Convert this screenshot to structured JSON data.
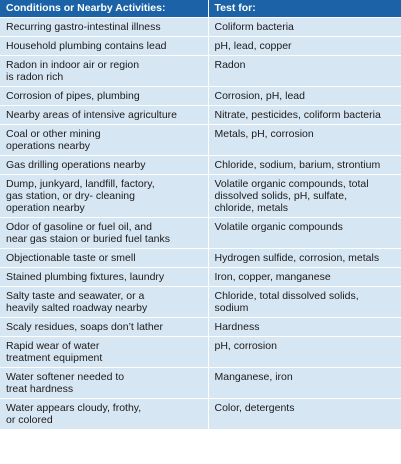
{
  "table": {
    "headers": [
      "Conditions or Nearby Activities:",
      "Test for:"
    ],
    "rows": [
      [
        "Recurring gastro-intestinal illness",
        "Coliform bacteria"
      ],
      [
        "Household plumbing contains lead",
        "pH, lead, copper"
      ],
      [
        "Radon in indoor air or region\nis radon rich",
        "Radon"
      ],
      [
        "Corrosion of pipes, plumbing",
        "Corrosion, pH, lead"
      ],
      [
        "Nearby areas of intensive agriculture",
        "Nitrate, pesticides, coliform bacteria"
      ],
      [
        "Coal or other mining\noperations nearby",
        "Metals, pH, corrosion"
      ],
      [
        "Gas drilling operations nearby",
        "Chloride, sodium, barium, strontium"
      ],
      [
        "Dump, junkyard, landfill, factory,\ngas station, or dry- cleaning\noperation nearby",
        "Volatile organic compounds, total\ndissolved solids, pH, sulfate,\nchloride, metals"
      ],
      [
        "Odor of gasoline or fuel oil, and\nnear gas staion or buried fuel tanks",
        "Volatile organic compounds"
      ],
      [
        "Objectionable taste or smell",
        "Hydrogen sulfide, corrosion, metals"
      ],
      [
        "Stained plumbing fixtures, laundry",
        "Iron, copper, manganese"
      ],
      [
        "Salty taste and seawater, or a\nheavily salted roadway nearby",
        "Chloride, total dissolved solids,\nsodium"
      ],
      [
        "Scaly residues, soaps don’t lather",
        "Hardness"
      ],
      [
        "Rapid wear of water\ntreatment equipment",
        "pH, corrosion"
      ],
      [
        "Water softener needed to\ntreat hardness",
        "Manganese, iron"
      ],
      [
        "Water appears cloudy, frothy,\nor colored",
        "Color, detergents"
      ]
    ]
  }
}
